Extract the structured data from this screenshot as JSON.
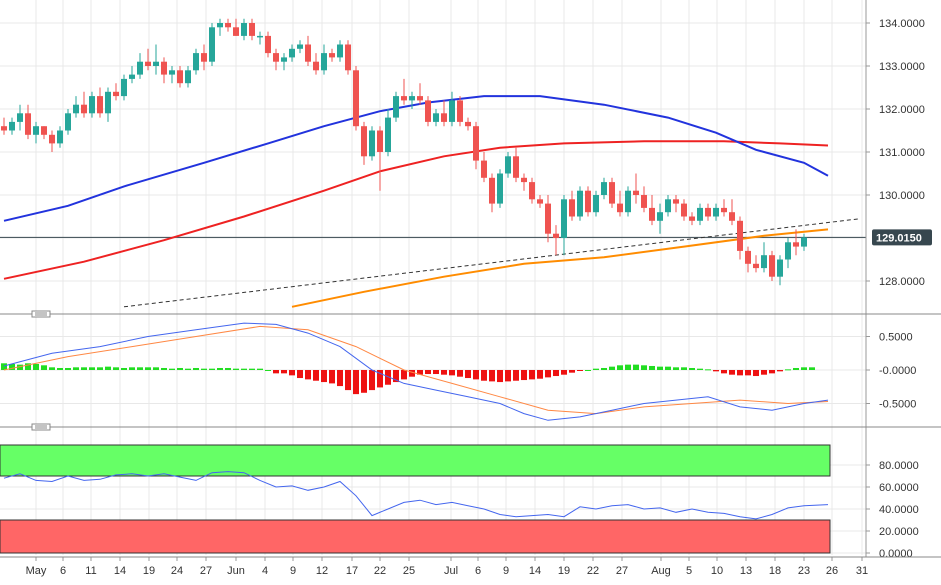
{
  "colors": {
    "bull_candle": "#26a69a",
    "bear_candle": "#ef5350",
    "sma_fast": "#2233dd",
    "sma_mid": "#ee2222",
    "sma_slow": "#ff8c00",
    "trendline": "#333333",
    "current_price_line": "#37474f",
    "macd_line": "#4466ee",
    "signal_line": "#ff8844",
    "hist_pos": "#22dd22",
    "hist_neg": "#ee1111",
    "rsi_line": "#4466ee",
    "overbought_zone": "#66ff66",
    "oversold_zone": "#ff6666",
    "grid": "#e8e8e8"
  },
  "price_panel": {
    "y_ticks": [
      "134.0000",
      "133.0000",
      "132.0000",
      "131.0000",
      "130.0000",
      "128.0000"
    ],
    "current_price_label": "129.0150"
  },
  "macd_panel": {
    "y_ticks": [
      "0.5000",
      "-0.0000",
      "-0.5000"
    ]
  },
  "rsi_panel": {
    "y_ticks": [
      "80.0000",
      "60.0000",
      "40.0000",
      "20.0000",
      "0.0000"
    ]
  },
  "x_axis": {
    "labels": [
      "May",
      "6",
      "11",
      "14",
      "19",
      "24",
      "27",
      "Jun",
      "4",
      "9",
      "12",
      "17",
      "22",
      "25",
      "Jul",
      "6",
      "9",
      "14",
      "19",
      "22",
      "27",
      "Aug",
      "5",
      "10",
      "13",
      "18",
      "23",
      "26",
      "31"
    ]
  },
  "chart_data": [
    {
      "type": "candlestick",
      "title": "",
      "y_range": [
        127.4,
        134.3
      ],
      "candles": [
        [
          131.6,
          131.8,
          131.4,
          131.5
        ],
        [
          131.5,
          131.8,
          131.4,
          131.7
        ],
        [
          131.7,
          132.1,
          131.5,
          131.9
        ],
        [
          131.9,
          132.1,
          131.3,
          131.4
        ],
        [
          131.4,
          131.7,
          131.2,
          131.6
        ],
        [
          131.6,
          131.6,
          131.3,
          131.4
        ],
        [
          131.4,
          131.5,
          131.0,
          131.2
        ],
        [
          131.2,
          131.6,
          131.1,
          131.5
        ],
        [
          131.5,
          132.0,
          131.4,
          131.9
        ],
        [
          131.9,
          132.3,
          131.8,
          132.1
        ],
        [
          132.1,
          132.4,
          131.8,
          131.9
        ],
        [
          131.9,
          132.4,
          131.8,
          132.3
        ],
        [
          132.3,
          132.5,
          131.8,
          131.9
        ],
        [
          131.9,
          132.5,
          131.7,
          132.4
        ],
        [
          132.4,
          132.6,
          132.2,
          132.3
        ],
        [
          132.3,
          132.8,
          132.2,
          132.7
        ],
        [
          132.7,
          133.0,
          132.6,
          132.8
        ],
        [
          132.8,
          133.3,
          132.7,
          133.1
        ],
        [
          133.1,
          133.4,
          132.9,
          133.0
        ],
        [
          133.0,
          133.5,
          132.8,
          133.1
        ],
        [
          133.1,
          133.2,
          132.6,
          132.8
        ],
        [
          132.8,
          133.0,
          132.6,
          132.9
        ],
        [
          132.9,
          133.0,
          132.5,
          132.6
        ],
        [
          132.6,
          133.0,
          132.5,
          132.9
        ],
        [
          132.9,
          133.4,
          132.8,
          133.3
        ],
        [
          133.3,
          133.5,
          132.9,
          133.1
        ],
        [
          133.1,
          134.0,
          133.0,
          133.9
        ],
        [
          133.9,
          134.1,
          133.7,
          134.0
        ],
        [
          134.0,
          134.1,
          133.8,
          133.9
        ],
        [
          133.9,
          134.1,
          133.7,
          133.7
        ],
        [
          133.7,
          134.1,
          133.6,
          134.0
        ],
        [
          134.0,
          134.1,
          133.6,
          133.7
        ],
        [
          133.7,
          133.8,
          133.5,
          133.7
        ],
        [
          133.7,
          133.8,
          133.2,
          133.3
        ],
        [
          133.3,
          133.4,
          132.9,
          133.1
        ],
        [
          133.1,
          133.3,
          132.9,
          133.2
        ],
        [
          133.2,
          133.5,
          133.1,
          133.4
        ],
        [
          133.4,
          133.6,
          133.3,
          133.5
        ],
        [
          133.5,
          133.7,
          133.0,
          133.1
        ],
        [
          133.1,
          133.3,
          132.8,
          132.9
        ],
        [
          132.9,
          133.5,
          132.8,
          133.3
        ],
        [
          133.3,
          133.4,
          133.1,
          133.2
        ],
        [
          133.2,
          133.6,
          133.1,
          133.5
        ],
        [
          133.5,
          133.6,
          132.8,
          132.9
        ],
        [
          132.9,
          133.0,
          131.5,
          131.6
        ],
        [
          131.6,
          131.7,
          130.7,
          130.9
        ],
        [
          130.9,
          131.6,
          130.8,
          131.5
        ],
        [
          131.5,
          131.6,
          130.1,
          131.0
        ],
        [
          131.0,
          132.0,
          130.9,
          131.8
        ],
        [
          131.8,
          132.4,
          131.7,
          132.3
        ],
        [
          132.3,
          132.7,
          132.1,
          132.2
        ],
        [
          132.2,
          132.4,
          132.0,
          132.3
        ],
        [
          132.3,
          132.6,
          132.1,
          132.2
        ],
        [
          132.2,
          132.3,
          131.6,
          131.7
        ],
        [
          131.7,
          132.0,
          131.6,
          131.9
        ],
        [
          131.9,
          132.2,
          131.6,
          131.7
        ],
        [
          131.7,
          132.4,
          131.6,
          132.2
        ],
        [
          132.2,
          132.3,
          131.6,
          131.7
        ],
        [
          131.7,
          131.8,
          131.5,
          131.6
        ],
        [
          131.6,
          131.7,
          130.6,
          130.8
        ],
        [
          130.8,
          131.0,
          130.3,
          130.4
        ],
        [
          130.4,
          130.5,
          129.6,
          129.8
        ],
        [
          129.8,
          130.6,
          129.7,
          130.5
        ],
        [
          130.5,
          131.0,
          130.4,
          130.9
        ],
        [
          130.9,
          131.1,
          130.3,
          130.4
        ],
        [
          130.4,
          130.5,
          130.1,
          130.3
        ],
        [
          130.3,
          130.4,
          129.8,
          129.9
        ],
        [
          129.9,
          130.0,
          129.7,
          129.8
        ],
        [
          129.8,
          130.0,
          128.9,
          129.1
        ],
        [
          129.1,
          129.3,
          128.6,
          129.0
        ],
        [
          129.0,
          130.0,
          128.6,
          129.9
        ],
        [
          129.9,
          130.1,
          129.4,
          129.5
        ],
        [
          129.5,
          130.2,
          129.4,
          130.1
        ],
        [
          130.1,
          130.2,
          129.5,
          129.6
        ],
        [
          129.6,
          130.1,
          129.5,
          130.0
        ],
        [
          130.0,
          130.4,
          129.9,
          130.3
        ],
        [
          130.3,
          130.4,
          129.7,
          129.8
        ],
        [
          129.8,
          130.1,
          129.5,
          129.6
        ],
        [
          129.6,
          130.2,
          129.5,
          130.1
        ],
        [
          130.1,
          130.5,
          129.8,
          130.0
        ],
        [
          130.0,
          130.2,
          129.6,
          129.7
        ],
        [
          129.7,
          130.0,
          129.3,
          129.4
        ],
        [
          129.4,
          129.8,
          129.1,
          129.6
        ],
        [
          129.6,
          130.0,
          129.5,
          129.9
        ],
        [
          129.9,
          130.0,
          129.6,
          129.8
        ],
        [
          129.8,
          129.9,
          129.4,
          129.5
        ],
        [
          129.5,
          129.6,
          129.3,
          129.4
        ],
        [
          129.4,
          129.8,
          129.3,
          129.7
        ],
        [
          129.7,
          129.8,
          129.4,
          129.5
        ],
        [
          129.5,
          129.8,
          129.4,
          129.7
        ],
        [
          129.7,
          129.9,
          129.5,
          129.6
        ],
        [
          129.6,
          129.9,
          129.3,
          129.4
        ],
        [
          129.4,
          129.5,
          128.5,
          128.7
        ],
        [
          128.7,
          128.8,
          128.2,
          128.4
        ],
        [
          128.4,
          128.6,
          128.2,
          128.3
        ],
        [
          128.3,
          128.9,
          128.2,
          128.6
        ],
        [
          128.6,
          128.7,
          128.0,
          128.1
        ],
        [
          128.1,
          128.6,
          127.9,
          128.5
        ],
        [
          128.5,
          129.0,
          128.3,
          128.9
        ],
        [
          128.9,
          129.2,
          128.6,
          128.8
        ],
        [
          128.8,
          129.1,
          128.7,
          129.015
        ]
      ],
      "sma_fast": [
        [
          0,
          129.4
        ],
        [
          8,
          129.75
        ],
        [
          15,
          130.2
        ],
        [
          25,
          130.75
        ],
        [
          33,
          131.2
        ],
        [
          40,
          131.6
        ],
        [
          47,
          131.95
        ],
        [
          53,
          132.15
        ],
        [
          60,
          132.3
        ],
        [
          67,
          132.3
        ],
        [
          75,
          132.1
        ],
        [
          83,
          131.8
        ],
        [
          89,
          131.45
        ],
        [
          94,
          131.05
        ],
        [
          100,
          130.75
        ],
        [
          103,
          130.45
        ]
      ],
      "sma_mid": [
        [
          0,
          128.05
        ],
        [
          10,
          128.45
        ],
        [
          20,
          128.95
        ],
        [
          30,
          129.5
        ],
        [
          40,
          130.1
        ],
        [
          47,
          130.55
        ],
        [
          55,
          130.9
        ],
        [
          62,
          131.1
        ],
        [
          70,
          131.2
        ],
        [
          80,
          131.25
        ],
        [
          90,
          131.25
        ],
        [
          97,
          131.2
        ],
        [
          103,
          131.15
        ]
      ],
      "sma_slow": [
        [
          36,
          127.4
        ],
        [
          45,
          127.75
        ],
        [
          55,
          128.1
        ],
        [
          65,
          128.4
        ],
        [
          75,
          128.55
        ],
        [
          85,
          128.8
        ],
        [
          95,
          129.05
        ],
        [
          103,
          129.2
        ]
      ],
      "trendline": [
        [
          15,
          127.4
        ],
        [
          107,
          129.45
        ]
      ],
      "current_price": 129.015
    },
    {
      "type": "line",
      "title": "",
      "y_range": [
        -0.75,
        0.75
      ],
      "macd": [
        [
          0,
          0.06
        ],
        [
          6,
          0.25
        ],
        [
          12,
          0.35
        ],
        [
          18,
          0.5
        ],
        [
          24,
          0.6
        ],
        [
          30,
          0.7
        ],
        [
          34,
          0.68
        ],
        [
          38,
          0.55
        ],
        [
          42,
          0.35
        ],
        [
          46,
          0.0
        ],
        [
          50,
          -0.2
        ],
        [
          54,
          -0.3
        ],
        [
          58,
          -0.4
        ],
        [
          62,
          -0.5
        ],
        [
          65,
          -0.65
        ],
        [
          68,
          -0.75
        ],
        [
          72,
          -0.7
        ],
        [
          76,
          -0.6
        ],
        [
          80,
          -0.5
        ],
        [
          84,
          -0.45
        ],
        [
          88,
          -0.4
        ],
        [
          92,
          -0.55
        ],
        [
          96,
          -0.6
        ],
        [
          100,
          -0.5
        ],
        [
          103,
          -0.45
        ]
      ],
      "signal": [
        [
          0,
          0.0
        ],
        [
          8,
          0.2
        ],
        [
          16,
          0.35
        ],
        [
          24,
          0.5
        ],
        [
          32,
          0.65
        ],
        [
          38,
          0.6
        ],
        [
          44,
          0.35
        ],
        [
          50,
          0.0
        ],
        [
          56,
          -0.2
        ],
        [
          62,
          -0.4
        ],
        [
          68,
          -0.6
        ],
        [
          74,
          -0.65
        ],
        [
          80,
          -0.55
        ],
        [
          86,
          -0.5
        ],
        [
          92,
          -0.45
        ],
        [
          98,
          -0.5
        ],
        [
          103,
          -0.47
        ]
      ],
      "histogram": [
        0.1,
        0.09,
        0.08,
        0.1,
        0.09,
        0.07,
        0.04,
        0.03,
        0.03,
        0.04,
        0.04,
        0.04,
        0.04,
        0.05,
        0.04,
        0.03,
        0.04,
        0.04,
        0.04,
        0.04,
        0.03,
        0.02,
        0.03,
        0.02,
        0.03,
        0.02,
        0.02,
        0.03,
        0.03,
        0.02,
        0.02,
        0.02,
        0.02,
        0.0,
        -0.05,
        -0.05,
        -0.08,
        -0.12,
        -0.14,
        -0.16,
        -0.18,
        -0.2,
        -0.24,
        -0.3,
        -0.36,
        -0.34,
        -0.3,
        -0.26,
        -0.22,
        -0.18,
        -0.14,
        -0.1,
        -0.07,
        -0.06,
        -0.06,
        -0.07,
        -0.08,
        -0.1,
        -0.12,
        -0.14,
        -0.16,
        -0.17,
        -0.18,
        -0.17,
        -0.16,
        -0.15,
        -0.14,
        -0.13,
        -0.11,
        -0.09,
        -0.07,
        -0.04,
        -0.01,
        0.0,
        0.02,
        0.03,
        0.05,
        0.07,
        0.08,
        0.08,
        0.07,
        0.06,
        0.05,
        0.05,
        0.04,
        0.04,
        0.03,
        0.02,
        0.01,
        -0.02,
        -0.05,
        -0.07,
        -0.08,
        -0.08,
        -0.09,
        -0.07,
        -0.05,
        -0.02,
        0.01,
        0.03,
        0.04,
        0.04
      ]
    },
    {
      "type": "line",
      "title": "",
      "y_range": [
        0,
        100
      ],
      "overbought": [
        70,
        100
      ],
      "oversold": [
        0,
        30
      ],
      "rsi": [
        [
          0,
          68
        ],
        [
          2,
          72
        ],
        [
          4,
          66
        ],
        [
          6,
          65
        ],
        [
          8,
          70
        ],
        [
          10,
          66
        ],
        [
          12,
          67
        ],
        [
          14,
          71
        ],
        [
          16,
          72
        ],
        [
          18,
          70
        ],
        [
          20,
          72
        ],
        [
          22,
          69
        ],
        [
          24,
          66
        ],
        [
          26,
          73
        ],
        [
          28,
          74
        ],
        [
          30,
          73
        ],
        [
          32,
          66
        ],
        [
          34,
          60
        ],
        [
          36,
          61
        ],
        [
          38,
          57
        ],
        [
          40,
          60
        ],
        [
          42,
          65
        ],
        [
          44,
          52
        ],
        [
          46,
          34
        ],
        [
          48,
          40
        ],
        [
          50,
          46
        ],
        [
          52,
          48
        ],
        [
          54,
          44
        ],
        [
          56,
          46
        ],
        [
          58,
          43
        ],
        [
          60,
          40
        ],
        [
          62,
          35
        ],
        [
          64,
          33
        ],
        [
          66,
          34
        ],
        [
          68,
          35
        ],
        [
          70,
          33
        ],
        [
          72,
          42
        ],
        [
          74,
          40
        ],
        [
          76,
          43
        ],
        [
          78,
          44
        ],
        [
          80,
          40
        ],
        [
          82,
          41
        ],
        [
          84,
          37
        ],
        [
          86,
          40
        ],
        [
          88,
          37
        ],
        [
          90,
          36
        ],
        [
          92,
          33
        ],
        [
          94,
          31
        ],
        [
          96,
          35
        ],
        [
          98,
          41
        ],
        [
          100,
          43
        ],
        [
          103,
          44
        ]
      ]
    }
  ]
}
